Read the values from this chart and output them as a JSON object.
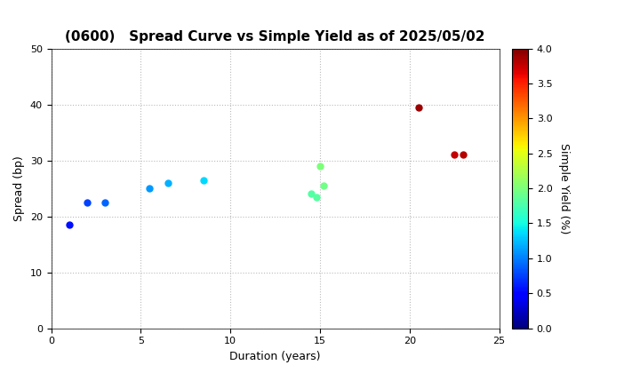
{
  "title": "(0600)   Spread Curve vs Simple Yield as of 2025/05/02",
  "xlabel": "Duration (years)",
  "ylabel": "Spread (bp)",
  "colorbar_label": "Simple Yield (%)",
  "xlim": [
    0,
    25
  ],
  "ylim": [
    0,
    50
  ],
  "xticks": [
    0,
    5,
    10,
    15,
    20,
    25
  ],
  "yticks": [
    0,
    10,
    20,
    30,
    40,
    50
  ],
  "colorbar_min": 0.0,
  "colorbar_max": 4.0,
  "colorbar_ticks": [
    0.0,
    0.5,
    1.0,
    1.5,
    2.0,
    2.5,
    3.0,
    3.5,
    4.0
  ],
  "points": [
    {
      "duration": 1.0,
      "spread": 18.5,
      "simple_yield": 0.55
    },
    {
      "duration": 2.0,
      "spread": 22.5,
      "simple_yield": 0.75
    },
    {
      "duration": 3.0,
      "spread": 22.5,
      "simple_yield": 0.9
    },
    {
      "duration": 5.5,
      "spread": 25.0,
      "simple_yield": 1.1
    },
    {
      "duration": 6.5,
      "spread": 26.0,
      "simple_yield": 1.2
    },
    {
      "duration": 8.5,
      "spread": 26.5,
      "simple_yield": 1.35
    },
    {
      "duration": 14.5,
      "spread": 24.0,
      "simple_yield": 1.8
    },
    {
      "duration": 14.8,
      "spread": 23.5,
      "simple_yield": 1.82
    },
    {
      "duration": 15.0,
      "spread": 29.0,
      "simple_yield": 2.0
    },
    {
      "duration": 15.2,
      "spread": 25.5,
      "simple_yield": 1.95
    },
    {
      "duration": 20.5,
      "spread": 39.5,
      "simple_yield": 3.9
    },
    {
      "duration": 22.5,
      "spread": 31.0,
      "simple_yield": 3.75
    },
    {
      "duration": 23.0,
      "spread": 31.0,
      "simple_yield": 3.8
    }
  ],
  "marker_size": 25,
  "background_color": "#ffffff",
  "grid_color": "#bbbbbb",
  "title_fontsize": 11,
  "axis_fontsize": 9,
  "tick_fontsize": 8
}
